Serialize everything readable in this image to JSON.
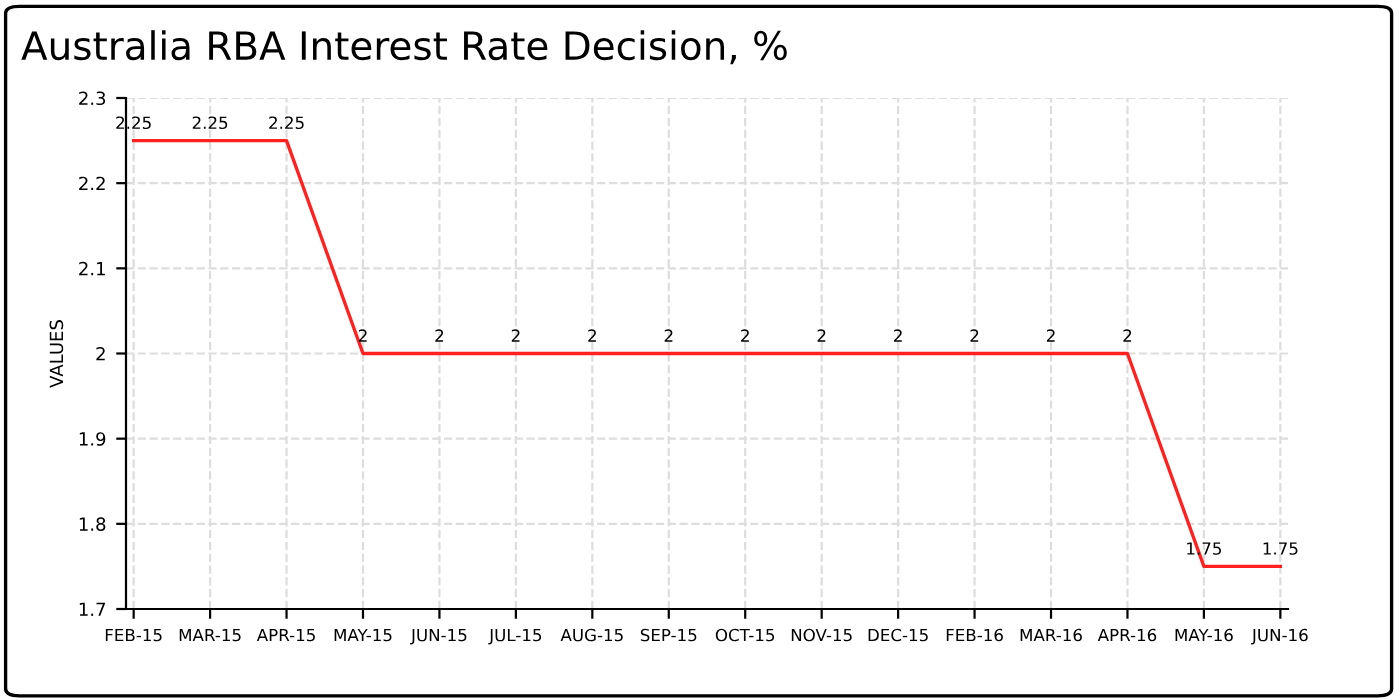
{
  "chart_data": {
    "type": "line",
    "title": "Australia RBA Interest Rate Decision, %",
    "ylabel": "VALUES",
    "categories": [
      "FEB-15",
      "MAR-15",
      "APR-15",
      "MAY-15",
      "JUN-15",
      "JUL-15",
      "AUG-15",
      "SEP-15",
      "OCT-15",
      "NOV-15",
      "DEC-15",
      "FEB-16",
      "MAR-16",
      "APR-16",
      "MAY-16",
      "JUN-16"
    ],
    "series": [
      {
        "color": "#ff2020",
        "values": [
          2.25,
          2.25,
          2.25,
          2,
          2,
          2,
          2,
          2,
          2,
          2,
          2,
          2,
          2,
          2,
          1.75,
          1.75
        ]
      }
    ],
    "ylim": [
      1.7,
      2.3
    ],
    "yticks": [
      1.7,
      1.8,
      1.9,
      2,
      2.1,
      2.2,
      2.3
    ],
    "grid": true,
    "data_labels": true,
    "marker": "none",
    "line_style": "solid"
  }
}
